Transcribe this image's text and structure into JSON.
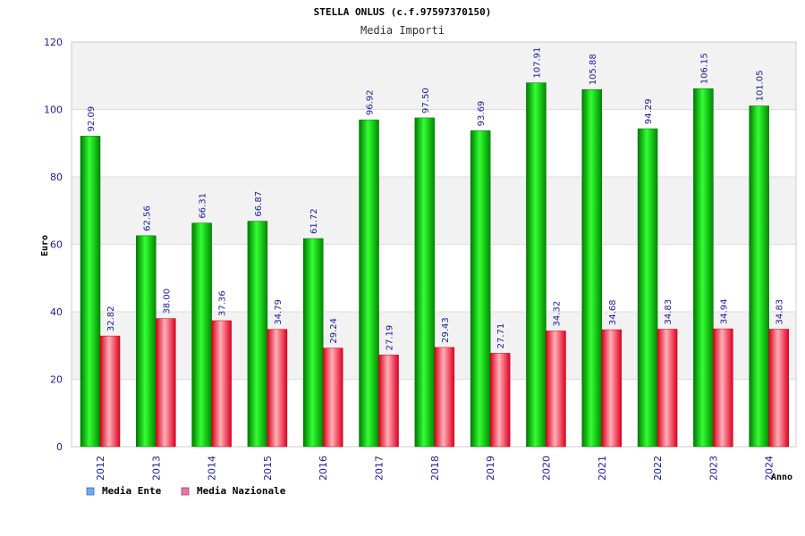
{
  "chart_data": {
    "type": "bar",
    "title": "STELLA ONLUS (c.f.97597370150)",
    "subtitle": "Media Importi",
    "xlabel": "Anno",
    "ylabel": "Euro",
    "ylim": [
      0,
      120
    ],
    "yticks": [
      "0",
      "20",
      "40",
      "60",
      "80",
      "100",
      "120"
    ],
    "categories": [
      "2012",
      "2013",
      "2014",
      "2015",
      "2016",
      "2017",
      "2018",
      "2019",
      "2020",
      "2021",
      "2022",
      "2023",
      "2024"
    ],
    "series": [
      {
        "name": "Media Ente",
        "color": "#00b800",
        "legend_color": "#6fa8f0",
        "values": [
          92.09,
          62.56,
          66.31,
          66.87,
          61.72,
          96.92,
          97.5,
          93.69,
          107.91,
          105.88,
          94.29,
          106.15,
          101.05
        ],
        "labels": [
          "92.09",
          "62.56",
          "66.31",
          "66.87",
          "61.72",
          "96.92",
          "97.50",
          "93.69",
          "107.91",
          "105.88",
          "94.29",
          "106.15",
          "101.05"
        ]
      },
      {
        "name": "Media Nazionale",
        "color": "#e8182a",
        "legend_color": "#e07aa8",
        "values": [
          32.82,
          38.0,
          37.36,
          34.79,
          29.24,
          27.19,
          29.43,
          27.71,
          34.32,
          34.68,
          34.83,
          34.94,
          34.83
        ],
        "labels": [
          "32.82",
          "38.00",
          "37.36",
          "34.79",
          "29.24",
          "27.19",
          "29.43",
          "27.71",
          "34.32",
          "34.68",
          "34.83",
          "34.94",
          "34.83"
        ]
      }
    ],
    "legend_position": "bottom-left",
    "grid": true
  }
}
